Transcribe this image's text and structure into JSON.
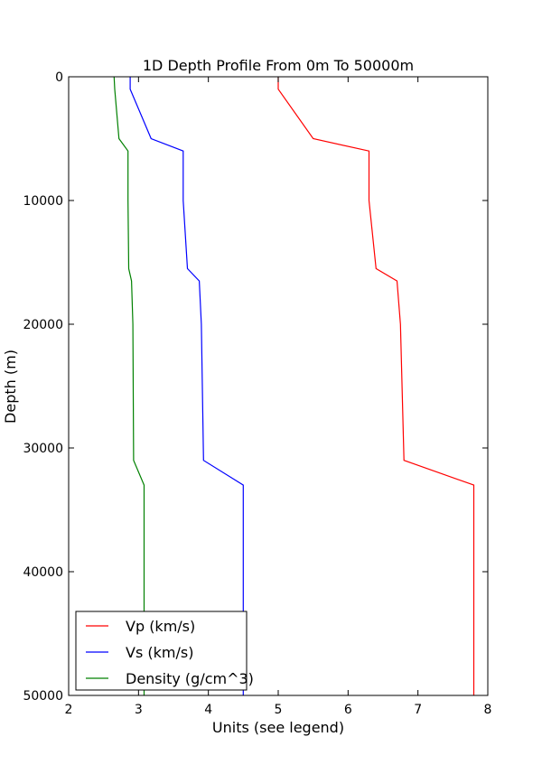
{
  "chart_data": {
    "type": "line",
    "title": "1D Depth Profile From 0m To 50000m",
    "xlabel": "Units (see legend)",
    "ylabel": "Depth (m)",
    "xlim": [
      2,
      8
    ],
    "ylim": [
      0,
      50000
    ],
    "y_inverted": true,
    "x_ticks": [
      "2",
      "3",
      "4",
      "5",
      "6",
      "7",
      "8"
    ],
    "y_ticks": [
      "0",
      "10000",
      "20000",
      "30000",
      "40000",
      "50000"
    ],
    "grid": false,
    "legend_position": "bottom-left",
    "series": [
      {
        "name": "Vp (km/s)",
        "color": "#ff0000",
        "points": [
          [
            5.0,
            0
          ],
          [
            5.0,
            1000
          ],
          [
            5.5,
            5000
          ],
          [
            6.3,
            6000
          ],
          [
            6.3,
            10000
          ],
          [
            6.4,
            15500
          ],
          [
            6.7,
            16500
          ],
          [
            6.75,
            20000
          ],
          [
            6.8,
            31000
          ],
          [
            7.8,
            33000
          ],
          [
            7.8,
            50000
          ]
        ]
      },
      {
        "name": "Vs (km/s)",
        "color": "#0000ff",
        "points": [
          [
            2.88,
            0
          ],
          [
            2.88,
            1000
          ],
          [
            3.18,
            5000
          ],
          [
            3.64,
            6000
          ],
          [
            3.64,
            10000
          ],
          [
            3.7,
            15500
          ],
          [
            3.87,
            16500
          ],
          [
            3.9,
            20000
          ],
          [
            3.93,
            31000
          ],
          [
            4.5,
            33000
          ],
          [
            4.5,
            50000
          ]
        ]
      },
      {
        "name": "Density (g/cm^3)",
        "color": "#008000",
        "points": [
          [
            2.65,
            0
          ],
          [
            2.66,
            1000
          ],
          [
            2.72,
            5000
          ],
          [
            2.85,
            6000
          ],
          [
            2.85,
            10000
          ],
          [
            2.86,
            15500
          ],
          [
            2.9,
            16500
          ],
          [
            2.92,
            20000
          ],
          [
            2.93,
            31000
          ],
          [
            3.08,
            33000
          ],
          [
            3.08,
            50000
          ]
        ]
      }
    ]
  }
}
